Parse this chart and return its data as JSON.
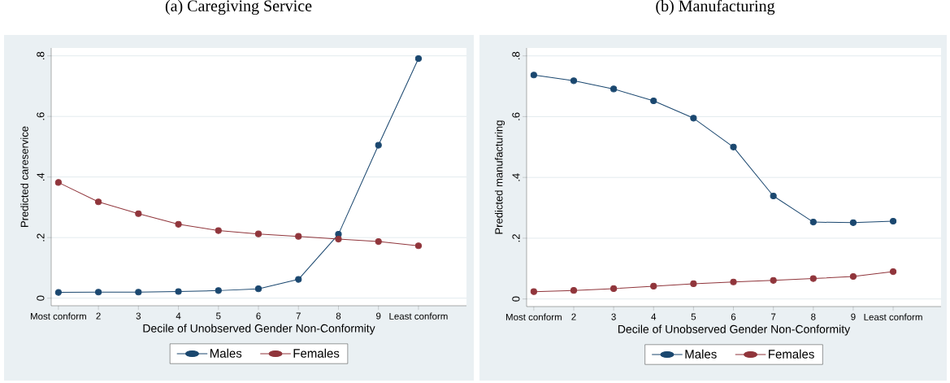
{
  "chart_data": [
    {
      "type": "line",
      "title": "(a) Caregiving Service",
      "xlabel": "Decile of Unobserved Gender Non-Conformity",
      "ylabel": "Predicted careservice",
      "categories": [
        "Most conform",
        "2",
        "3",
        "4",
        "5",
        "6",
        "7",
        "8",
        "9",
        "Least conform"
      ],
      "series": [
        {
          "name": "Males",
          "color": "#1a476f",
          "values": [
            0.019,
            0.02,
            0.02,
            0.022,
            0.025,
            0.031,
            0.062,
            0.211,
            0.505,
            0.791
          ]
        },
        {
          "name": "Females",
          "color": "#90353b",
          "values": [
            0.382,
            0.318,
            0.279,
            0.244,
            0.223,
            0.212,
            0.204,
            0.195,
            0.187,
            0.173
          ]
        }
      ],
      "ylim": [
        -0.025,
        0.826
      ],
      "yticks": [
        {
          "value": 0,
          "label": "0"
        },
        {
          "value": 0.2,
          "label": ".2"
        },
        {
          "value": 0.4,
          "label": ".4"
        },
        {
          "value": 0.6,
          "label": ".6"
        },
        {
          "value": 0.8,
          "label": ".8"
        }
      ],
      "grid": "y",
      "legend": "bottom",
      "marker": "circle",
      "line_style": "solid"
    },
    {
      "type": "line",
      "title": "(b) Manufacturing",
      "xlabel": "Decile of Unobserved Gender Non-Conformity",
      "ylabel": "Predicted manufacturing",
      "categories": [
        "Most conform",
        "2",
        "3",
        "4",
        "5",
        "6",
        "7",
        "8",
        "9",
        "Least conform"
      ],
      "series": [
        {
          "name": "Males",
          "color": "#1a476f",
          "values": [
            0.737,
            0.718,
            0.691,
            0.652,
            0.595,
            0.5,
            0.339,
            0.253,
            0.251,
            0.256
          ]
        },
        {
          "name": "Females",
          "color": "#90353b",
          "values": [
            0.024,
            0.028,
            0.034,
            0.042,
            0.05,
            0.056,
            0.061,
            0.067,
            0.074,
            0.09
          ]
        }
      ],
      "ylim": [
        -0.025,
        0.826
      ],
      "yticks": [
        {
          "value": 0,
          "label": "0"
        },
        {
          "value": 0.2,
          "label": ".2"
        },
        {
          "value": 0.4,
          "label": ".4"
        },
        {
          "value": 0.6,
          "label": ".6"
        },
        {
          "value": 0.8,
          "label": ".8"
        }
      ],
      "grid": "y",
      "legend": "bottom",
      "marker": "circle",
      "line_style": "solid"
    }
  ]
}
